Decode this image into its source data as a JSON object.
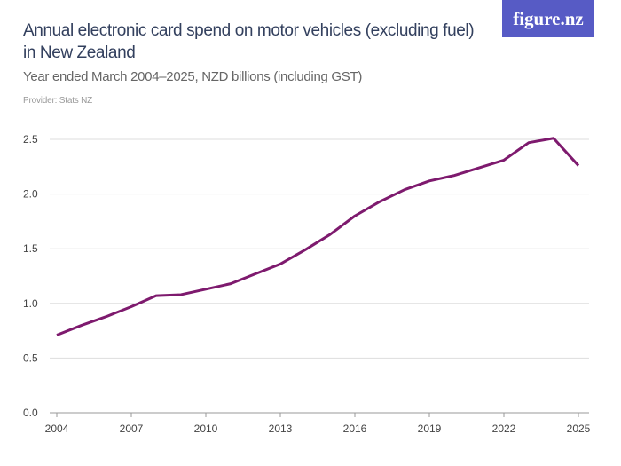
{
  "logo": "figure.nz",
  "chart_data": {
    "type": "line",
    "title": "Annual electronic card spend on motor vehicles (excluding fuel) in New Zealand",
    "subtitle": "Year ended March 2004–2025, NZD billions (including GST)",
    "provider": "Provider: Stats NZ",
    "x": [
      2004,
      2005,
      2006,
      2007,
      2008,
      2009,
      2010,
      2011,
      2012,
      2013,
      2014,
      2015,
      2016,
      2017,
      2018,
      2019,
      2020,
      2021,
      2022,
      2023,
      2024,
      2025
    ],
    "series": [
      {
        "values": [
          0.71,
          0.8,
          0.88,
          0.97,
          1.07,
          1.08,
          1.13,
          1.18,
          1.27,
          1.36,
          1.49,
          1.63,
          1.8,
          1.93,
          2.04,
          2.12,
          2.17,
          2.24,
          2.31,
          2.47,
          2.51,
          2.26
        ],
        "color": "#7e1a6e"
      }
    ],
    "ylim": [
      0,
      2.5
    ],
    "yticks": [
      "0.0",
      "0.5",
      "1.0",
      "1.5",
      "2.0",
      "2.5"
    ],
    "xticks": [
      "2004",
      "2007",
      "2010",
      "2013",
      "2016",
      "2019",
      "2022",
      "2025"
    ],
    "grid": true
  }
}
